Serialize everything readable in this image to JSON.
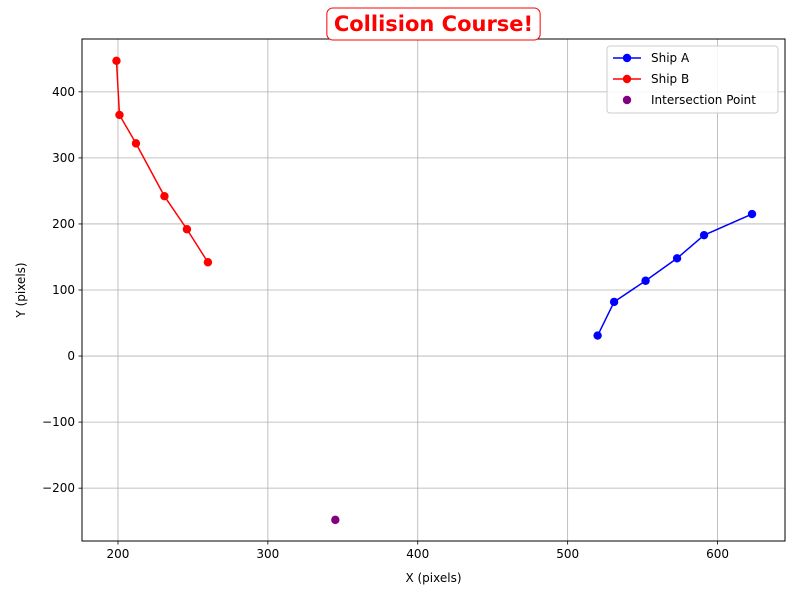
{
  "chart_data": {
    "type": "line",
    "title": "Collision Course!",
    "xlabel": "X (pixels)",
    "ylabel": "Y (pixels)",
    "xlim": [
      176,
      645
    ],
    "ylim": [
      -280,
      480
    ],
    "xticks": [
      200,
      300,
      400,
      500,
      600
    ],
    "yticks": [
      -200,
      -100,
      0,
      100,
      200,
      300,
      400
    ],
    "grid": true,
    "legend_position": "top-right",
    "title_color": "#ff0000",
    "series": [
      {
        "name": "Ship A",
        "kind": "line-marker",
        "color": "#0000ff",
        "x": [
          520,
          531,
          552,
          573,
          591,
          623
        ],
        "y": [
          31,
          82,
          114,
          148,
          183,
          215
        ]
      },
      {
        "name": "Ship B",
        "kind": "line-marker",
        "color": "#ff0000",
        "x": [
          199,
          201,
          212,
          231,
          246,
          260
        ],
        "y": [
          447,
          365,
          322,
          242,
          192,
          142
        ]
      },
      {
        "name": "Intersection Point",
        "kind": "scatter",
        "color": "#800080",
        "x": [
          345
        ],
        "y": [
          -248
        ]
      }
    ]
  }
}
